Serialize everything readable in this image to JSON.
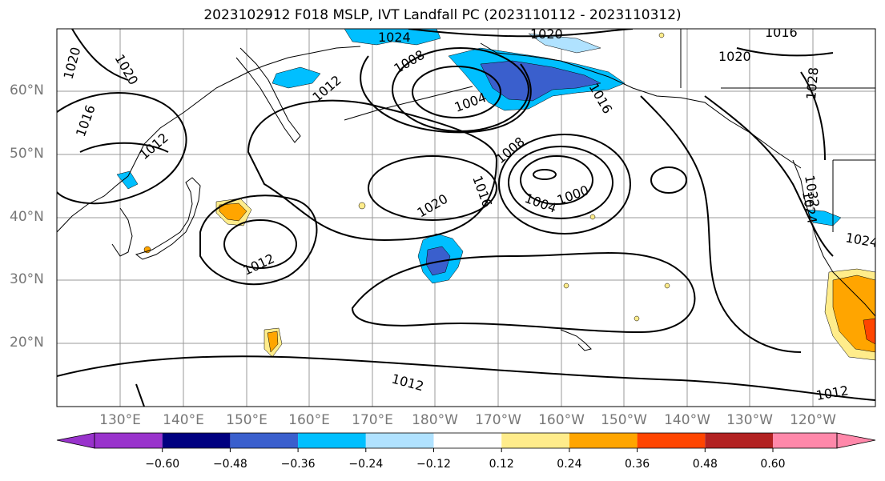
{
  "title": "2023102912 F018 MSLP, IVT Landfall PC (2023110112 - 2023110312)",
  "lat_labels": [
    "60°N",
    "50°N",
    "40°N",
    "30°N",
    "20°N"
  ],
  "lon_labels": [
    "130°E",
    "140°E",
    "150°E",
    "160°E",
    "170°E",
    "180°W",
    "170°W",
    "160°W",
    "150°W",
    "140°W",
    "130°W",
    "120°W"
  ],
  "isobar_labels": [
    "1024",
    "1020",
    "1016",
    "1020",
    "1020",
    "1008",
    "1012",
    "1016",
    "1012",
    "1004",
    "1008",
    "1016",
    "1020",
    "1004",
    "1000",
    "1012",
    "1012",
    "1012",
    "1016",
    "1020",
    "1028",
    "1032",
    "1024",
    "1024"
  ],
  "colorbar": {
    "ticks": [
      "−0.60",
      "−0.48",
      "−0.36",
      "−0.24",
      "−0.12",
      "0.12",
      "0.24",
      "0.36",
      "0.48",
      "0.60"
    ],
    "colors": [
      "#9933cc",
      "#000080",
      "#3a5fcd",
      "#00bfff",
      "#b0e2ff",
      "#ffffff",
      "#ffec8b",
      "#ffa500",
      "#ff4500",
      "#b22222",
      "#ff88aa"
    ]
  },
  "legend_colors": {
    "neg_strong": "#3a5fcd",
    "neg_mid": "#00bfff",
    "neg_weak": "#b0e2ff",
    "pos_weak": "#ffec8b",
    "pos_mid": "#ffa500",
    "pos_strong": "#ff4500"
  }
}
